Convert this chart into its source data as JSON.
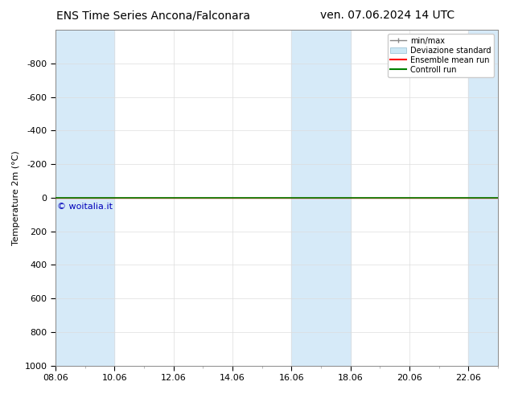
{
  "title_left": "ENS Time Series Ancona/Falconara",
  "title_right": "ven. 07.06.2024 14 UTC",
  "ylabel": "Temperature 2m (°C)",
  "watermark": "© woitalia.it",
  "xlim": [
    0,
    15
  ],
  "ylim": [
    -1000,
    1000
  ],
  "yticks": [
    -800,
    -600,
    -400,
    -200,
    0,
    200,
    400,
    600,
    800,
    1000
  ],
  "xtick_labels": [
    "08.06",
    "10.06",
    "12.06",
    "14.06",
    "16.06",
    "18.06",
    "20.06",
    "22.06"
  ],
  "xtick_positions": [
    0,
    2,
    4,
    6,
    8,
    10,
    12,
    14
  ],
  "shaded_bands": [
    [
      0.0,
      1.0
    ],
    [
      1.0,
      2.0
    ],
    [
      8.0,
      9.0
    ],
    [
      9.0,
      10.0
    ],
    [
      14.0,
      15.0
    ]
  ],
  "ensemble_line_y": 0,
  "control_line_y": 0,
  "legend_entries": [
    {
      "label": "min/max",
      "color": "#aaaaaa",
      "type": "errorbar"
    },
    {
      "label": "Deviazione standard",
      "color": "#cce0f0",
      "type": "box"
    },
    {
      "label": "Ensemble mean run",
      "color": "red",
      "type": "line"
    },
    {
      "label": "Controll run",
      "color": "green",
      "type": "line"
    }
  ],
  "band_color": "#d6eaf8",
  "background_color": "#ffffff",
  "grid_color": "#dddddd",
  "title_fontsize": 10,
  "axis_fontsize": 8,
  "watermark_color": "#0000bb",
  "watermark_fontsize": 8
}
